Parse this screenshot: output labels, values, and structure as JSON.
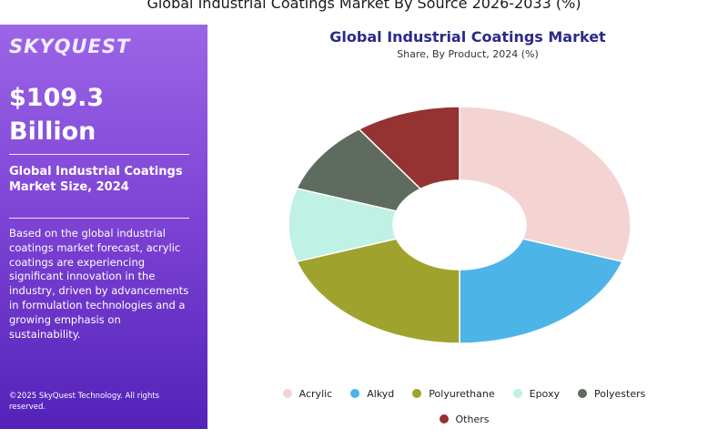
{
  "page": {
    "heading": "Global Industrial Coatings Market By Source 2026-2033 (%)"
  },
  "panel": {
    "brand": "SKYQUEST",
    "market_size_line1": "$109.3",
    "market_size_line2": "Billion",
    "size_label": "Global Industrial Coatings Market Size, 2024",
    "description": "Based on the global industrial coatings market forecast, acrylic coatings are experiencing significant innovation in the industry, driven by advancements in formulation technologies and a growing emphasis on sustainability.",
    "copyright": "©2025 SkyQuest Technology. All rights reserved."
  },
  "chart_data": {
    "type": "pie",
    "donut": true,
    "title": "Global Industrial Coatings Market",
    "subtitle": "Share, By Product, 2024 (%)",
    "legend_position": "bottom",
    "categories": [
      "Acrylic",
      "Alkyd",
      "Polyurethane",
      "Epoxy",
      "Polyesters",
      "Others"
    ],
    "values": [
      30,
      20,
      20,
      10,
      10,
      10
    ],
    "colors": [
      "#f4d3d3",
      "#4db4e8",
      "#9fa22c",
      "#bff1e4",
      "#5f6b5f",
      "#953232"
    ]
  }
}
